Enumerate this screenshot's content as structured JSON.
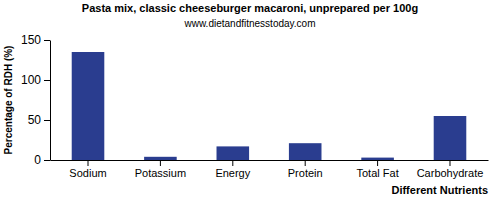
{
  "chart_data": {
    "type": "bar",
    "title": "Pasta mix, classic cheeseburger macaroni, unprepared per 100g",
    "subtitle": "www.dietandfitnesstoday.com",
    "x_label": "Different Nutrients",
    "y_label": "Percentage of RDH (%)",
    "categories": [
      "Sodium",
      "Potassium",
      "Energy",
      "Protein",
      "Total Fat",
      "Carbohydrate"
    ],
    "values": [
      135,
      4,
      17,
      21,
      3,
      55
    ],
    "color": "#2a3d8f",
    "ylim": [
      0,
      150
    ],
    "yticks": [
      0,
      50,
      100,
      150
    ],
    "grid": false
  }
}
